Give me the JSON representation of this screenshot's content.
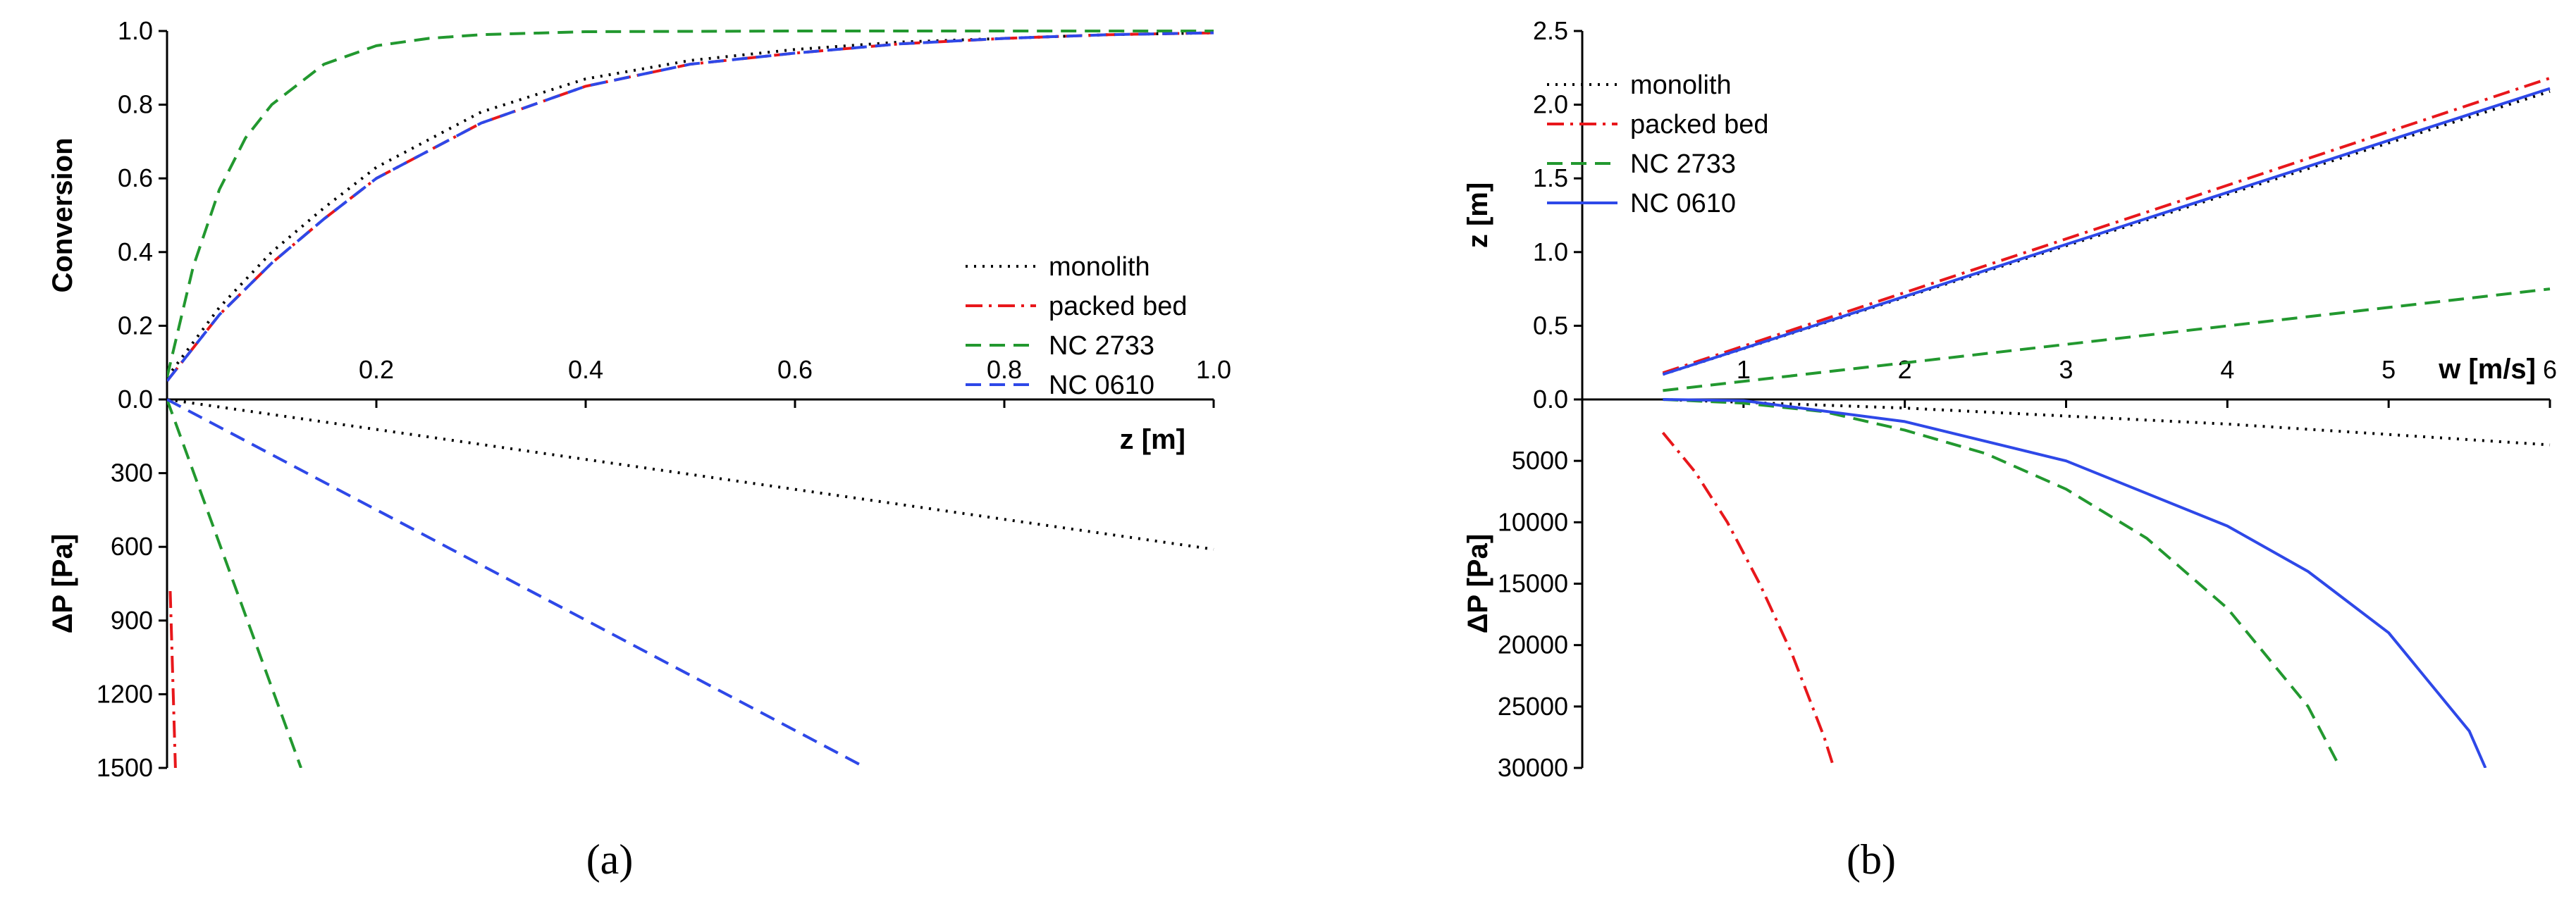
{
  "chart_data": [
    {
      "id": "a",
      "panel_label": "(a)",
      "type": "line",
      "xlabel": "z [m]",
      "x_range": [
        0,
        1.0
      ],
      "x_ticks": [
        "0.2",
        "0.4",
        "0.6",
        "0.8",
        "1.0"
      ],
      "top": {
        "ylabel": "Conversion",
        "ylim": [
          0,
          1.0
        ],
        "y_ticks": [
          "0.0",
          "0.2",
          "0.4",
          "0.6",
          "0.8",
          "1.0"
        ],
        "series": [
          {
            "name": "monolith",
            "color": "#000000",
            "dash": "dotted",
            "x": [
              0.0,
              0.05,
              0.1,
              0.15,
              0.2,
              0.3,
              0.4,
              0.5,
              0.6,
              0.7,
              0.8,
              0.9,
              1.0
            ],
            "y": [
              0.06,
              0.25,
              0.4,
              0.52,
              0.63,
              0.78,
              0.87,
              0.92,
              0.95,
              0.97,
              0.98,
              0.99,
              0.995
            ]
          },
          {
            "name": "packed bed",
            "color": "#e8171b",
            "dash": "dashdot",
            "x": [
              0.0,
              0.05,
              0.1,
              0.15,
              0.2,
              0.3,
              0.4,
              0.5,
              0.6,
              0.7,
              0.8,
              0.9,
              1.0
            ],
            "y": [
              0.05,
              0.23,
              0.37,
              0.49,
              0.6,
              0.75,
              0.85,
              0.91,
              0.94,
              0.965,
              0.98,
              0.99,
              0.995
            ]
          },
          {
            "name": "NC 2733",
            "color": "#22982f",
            "dash": "dashed",
            "x": [
              0.0,
              0.025,
              0.05,
              0.075,
              0.1,
              0.15,
              0.2,
              0.25,
              0.3,
              0.4,
              0.6,
              0.8,
              1.0
            ],
            "y": [
              0.06,
              0.36,
              0.57,
              0.71,
              0.8,
              0.91,
              0.96,
              0.98,
              0.99,
              0.998,
              1.0,
              1.0,
              1.0
            ]
          },
          {
            "name": "NC 0610",
            "color": "#2e48e8",
            "dash": "dashed",
            "x": [
              0.0,
              0.05,
              0.1,
              0.15,
              0.2,
              0.3,
              0.4,
              0.5,
              0.6,
              0.7,
              0.8,
              0.9,
              1.0
            ],
            "y": [
              0.05,
              0.23,
              0.37,
              0.49,
              0.6,
              0.75,
              0.85,
              0.91,
              0.94,
              0.965,
              0.98,
              0.99,
              0.995
            ]
          }
        ]
      },
      "bottom": {
        "ylabel": "ΔP [Pa]",
        "ylim": [
          0,
          1500
        ],
        "y_ticks": [
          "300",
          "600",
          "900",
          "1200",
          "1500"
        ],
        "series": [
          {
            "name": "monolith",
            "color": "#000000",
            "dash": "dotted",
            "x": [
              0.0,
              1.0
            ],
            "y": [
              0,
              610
            ]
          },
          {
            "name": "packed bed",
            "color": "#e8171b",
            "dash": "dashdot",
            "x": [
              0.003,
              0.008
            ],
            "y": [
              780,
              1500
            ]
          },
          {
            "name": "NC 2733",
            "color": "#22982f",
            "dash": "dashed",
            "x": [
              0.0,
              0.128
            ],
            "y": [
              0,
              1500
            ]
          },
          {
            "name": "NC 0610",
            "color": "#2e48e8",
            "dash": "dashed",
            "x": [
              0.0,
              0.668
            ],
            "y": [
              0,
              1500
            ]
          }
        ]
      },
      "legend": {
        "placement": "right-middle of top panel",
        "entries": [
          "monolith",
          "packed bed",
          "NC 2733",
          "NC 0610"
        ]
      }
    },
    {
      "id": "b",
      "panel_label": "(b)",
      "type": "line",
      "xlabel": "w [m/s]",
      "x_range": [
        0,
        6
      ],
      "x_ticks": [
        "1",
        "2",
        "3",
        "4",
        "5",
        "6"
      ],
      "top": {
        "ylabel": "z [m]",
        "ylim": [
          0,
          2.5
        ],
        "y_ticks": [
          "0.0",
          "0.5",
          "1.0",
          "1.5",
          "2.0",
          "2.5"
        ],
        "series": [
          {
            "name": "monolith",
            "color": "#000000",
            "dash": "dotted",
            "x": [
              0.5,
              6.0
            ],
            "y": [
              0.17,
              2.09
            ]
          },
          {
            "name": "packed bed",
            "color": "#e8171b",
            "dash": "dashdot",
            "x": [
              0.5,
              6.0
            ],
            "y": [
              0.18,
              2.18
            ]
          },
          {
            "name": "NC 2733",
            "color": "#22982f",
            "dash": "dashed",
            "x": [
              0.5,
              6.0
            ],
            "y": [
              0.06,
              0.75
            ]
          },
          {
            "name": "NC 0610",
            "color": "#2e48e8",
            "dash": "solid",
            "x": [
              0.5,
              6.0
            ],
            "y": [
              0.17,
              2.11
            ]
          }
        ]
      },
      "bottom": {
        "ylabel": "ΔP [Pa]",
        "ylim": [
          0,
          30000
        ],
        "y_ticks": [
          "5000",
          "10000",
          "15000",
          "20000",
          "25000",
          "30000"
        ],
        "series": [
          {
            "name": "monolith",
            "color": "#000000",
            "dash": "dotted",
            "x": [
              0.5,
              2.0,
              4.0,
              6.0
            ],
            "y": [
              0,
              700,
              2000,
              3700
            ]
          },
          {
            "name": "packed bed",
            "color": "#e8171b",
            "dash": "dashdot",
            "x": [
              0.5,
              0.7,
              0.9,
              1.1,
              1.3,
              1.5,
              1.56
            ],
            "y": [
              2700,
              5900,
              10000,
              15000,
              20700,
              27500,
              30000
            ]
          },
          {
            "name": "NC 2733",
            "color": "#22982f",
            "dash": "dashed",
            "x": [
              0.5,
              1.0,
              1.5,
              2.0,
              2.5,
              3.0,
              3.5,
              4.0,
              4.5,
              4.7
            ],
            "y": [
              0,
              300,
              1000,
              2500,
              4400,
              7300,
              11300,
              17000,
              25000,
              30000
            ]
          },
          {
            "name": "NC 0610",
            "color": "#2e48e8",
            "dash": "solid",
            "x": [
              0.5,
              1.0,
              2.0,
              3.0,
              4.0,
              4.5,
              5.0,
              5.5,
              5.6
            ],
            "y": [
              0,
              100,
              1800,
              5000,
              10300,
              14000,
              19000,
              27000,
              30000
            ]
          }
        ]
      },
      "legend": {
        "placement": "top-left of top panel",
        "entries": [
          "monolith",
          "packed bed",
          "NC 2733",
          "NC 0610"
        ]
      }
    }
  ]
}
